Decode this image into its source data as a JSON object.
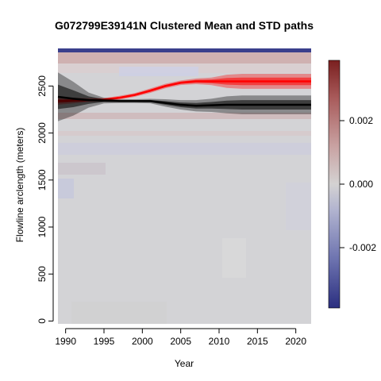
{
  "chart_data": {
    "type": "heatmap",
    "title": "G072799E39141N Clustered Mean and STD paths",
    "xlabel": "Year",
    "ylabel": "Flowline arclength (meters)",
    "xlim": [
      1989,
      2022
    ],
    "ylim": [
      -30,
      2900
    ],
    "x_ticks": [
      1990,
      1995,
      2000,
      2005,
      2010,
      2015,
      2020
    ],
    "y_ticks": [
      0,
      500,
      1000,
      1500,
      2000,
      2500
    ],
    "colorbar": {
      "range": [
        -0.0039,
        0.0039
      ],
      "ticks": [
        -0.002,
        0.0,
        0.002
      ],
      "tick_labels": [
        "-0.002",
        "0.000",
        "0.002"
      ],
      "colors": [
        "#2b2f80",
        "#6e74b0",
        "#b3b5d0",
        "#d4d2d2",
        "#c9a3a3",
        "#a85a5a",
        "#7a1f1f"
      ]
    },
    "series": [
      {
        "color": "#ff0000",
        "x": [
          1989,
          1991,
          1993,
          1995,
          1997,
          1999,
          2001,
          2003,
          2005,
          2007,
          2009,
          2011,
          2013,
          2015,
          2017,
          2019,
          2021,
          2022
        ],
        "mean": [
          2340,
          2345,
          2350,
          2355,
          2375,
          2405,
          2450,
          2500,
          2535,
          2550,
          2550,
          2550,
          2550,
          2550,
          2550,
          2550,
          2550,
          2550
        ],
        "std": [
          20,
          15,
          10,
          8,
          10,
          10,
          12,
          12,
          12,
          15,
          20,
          35,
          40,
          40,
          40,
          40,
          40,
          40
        ]
      },
      {
        "color": "#000000",
        "x": [
          1989,
          1991,
          1993,
          1995,
          1997,
          1999,
          2001,
          2003,
          2005,
          2007,
          2009,
          2011,
          2013,
          2015,
          2017,
          2019,
          2021,
          2022
        ],
        "mean": [
          2385,
          2365,
          2350,
          2345,
          2340,
          2340,
          2340,
          2320,
          2300,
          2290,
          2295,
          2300,
          2300,
          2300,
          2300,
          2300,
          2300,
          2300
        ],
        "std": [
          130,
          90,
          40,
          15,
          10,
          10,
          12,
          20,
          25,
          30,
          35,
          45,
          50,
          50,
          50,
          50,
          50,
          50
        ]
      }
    ]
  }
}
